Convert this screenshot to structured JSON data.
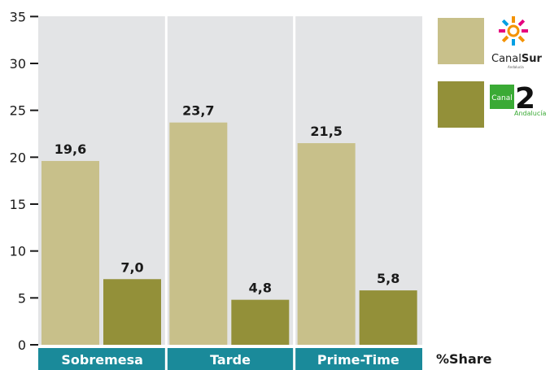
{
  "chart_data": {
    "type": "bar",
    "categories": [
      "Sobremesa",
      "Tarde",
      "Prime-Time"
    ],
    "series": [
      {
        "name": "CanalSur",
        "values": [
          19.6,
          23.7,
          21.5
        ],
        "color": "#c8c08a"
      },
      {
        "name": "Canal 2 Andalucía",
        "values": [
          7.0,
          4.8,
          5.8
        ],
        "color": "#939039"
      }
    ],
    "value_labels": [
      [
        "19,6",
        "23,7",
        "21,5"
      ],
      [
        "7,0",
        "4,8",
        "5,8"
      ]
    ],
    "yticks": [
      0,
      5,
      10,
      15,
      20,
      25,
      30,
      35
    ],
    "ylim": [
      0,
      35
    ],
    "ylabel": "%Share",
    "grid": false,
    "legend": "right",
    "plot_background": "#e3e4e6",
    "category_band_color": "#1a8a9a"
  },
  "legend_items": [
    {
      "series": "CanalSur",
      "logo_text_main": "Canal",
      "logo_text_bold": "Sur",
      "logo_sub": "Andalucía",
      "icon": "canalsur-sun-logo"
    },
    {
      "series": "Canal 2 Andalucía",
      "logo_box_text": "Canal",
      "logo_number": "2",
      "logo_sub": "Andalucía",
      "icon": "canal2-logo"
    }
  ]
}
